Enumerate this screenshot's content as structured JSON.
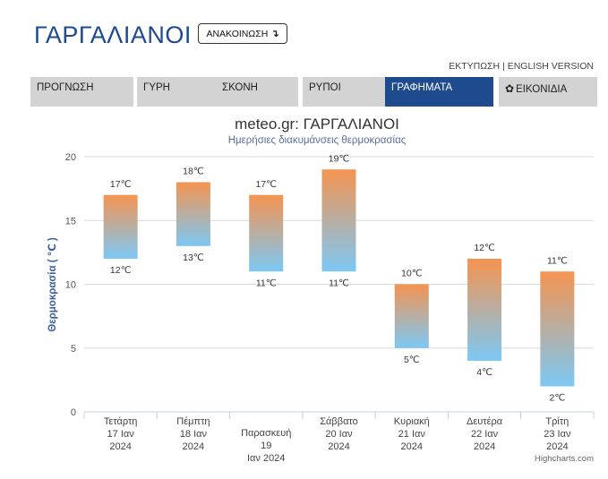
{
  "header": {
    "city": "ΓΑΡΓΑΛΙΑΝΟΙ",
    "announce_label": "ΑΝΑΚΟΙΝΩΣΗ",
    "announce_icon": "arrow-down-icon"
  },
  "util": {
    "print": "ΕΚΤΥΠΩΣΗ",
    "sep": "|",
    "english": "ENGLISH VERSION"
  },
  "tabs": [
    {
      "label": "ΠΡΟΓΝΩΣΗ",
      "active": false
    },
    {
      "label": "ΓΥΡΗ",
      "active": false
    },
    {
      "label": "ΣΚΟΝΗ",
      "active": false
    },
    {
      "label": "ΡΥΠΟΙ",
      "active": false
    },
    {
      "label": "ΓΡΑΦΗΜΑΤΑ",
      "active": true
    },
    {
      "label": "ΕΙΚΟΝΙΔΙΑ",
      "active": false,
      "icon": "gear-icon"
    }
  ],
  "colors": {
    "accent": "#1e4a8e",
    "bar_top": "#f59450",
    "bar_bottom": "#7cc8f5",
    "tab_bg": "#d3d3d3"
  },
  "chart_data": {
    "type": "bar",
    "subtype": "columnrange",
    "title": "meteo.gr: ΓΑΡΓΑΛΙΑΝΟΙ",
    "subtitle": "Ημερήσιες διακυμάνσεις θερμοκρασίας",
    "ylabel": "Θερμοκρασία ( ℃ )",
    "ylim": [
      0,
      20
    ],
    "yticks": [
      0,
      5,
      10,
      15,
      20
    ],
    "grid": true,
    "unit": "°C",
    "categories": [
      [
        "Τετάρτη",
        "17 Ιαν",
        "2024"
      ],
      [
        "Πέμπτη",
        "18 Ιαν",
        "2024"
      ],
      [
        "Παρασκευή",
        "19",
        "Ιαν 2024"
      ],
      [
        "Σάββατο",
        "20 Ιαν",
        "2024"
      ],
      [
        "Κυριακή",
        "21 Ιαν",
        "2024"
      ],
      [
        "Δευτέρα",
        "22 Ιαν",
        "2024"
      ],
      [
        "Τρίτη",
        "23 Ιαν",
        "2024"
      ]
    ],
    "low": [
      12,
      13,
      11,
      11,
      5,
      4,
      2
    ],
    "high": [
      17,
      18,
      17,
      19,
      10,
      12,
      11
    ],
    "credit": "Highcharts.com"
  }
}
